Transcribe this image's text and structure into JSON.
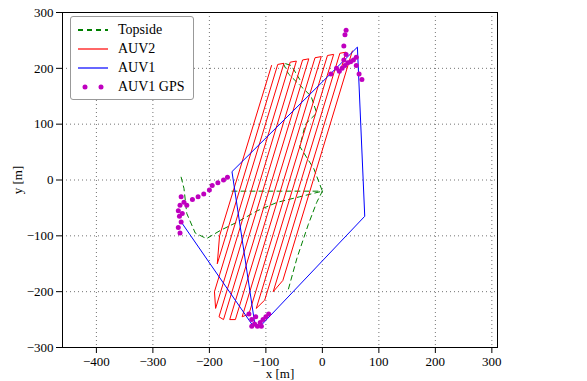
{
  "chart_data": {
    "type": "line",
    "x_label": "x [m]",
    "y_label": "y [m]",
    "xlim": [
      -460,
      310
    ],
    "ylim": [
      -300,
      300
    ],
    "xticks": [
      -400,
      -300,
      -200,
      -100,
      0,
      100,
      200,
      300
    ],
    "yticks": [
      -300,
      -200,
      -100,
      0,
      100,
      200,
      300
    ],
    "grid": true,
    "legend": "upper left",
    "series": [
      {
        "name": "Topside",
        "color": "#008000",
        "type": "line",
        "line_style": "dashed",
        "x": [
          -250,
          -245,
          -240,
          -225,
          -205,
          -180,
          -150,
          -115,
          -80,
          -40,
          0,
          -15,
          -40,
          -30,
          -10,
          -20,
          -40,
          -60,
          -70,
          -55,
          -40,
          null,
          -160,
          0,
          null,
          -60,
          -45,
          -25,
          -10,
          0
        ],
        "y": [
          5,
          -15,
          -60,
          -95,
          -105,
          -90,
          -75,
          -55,
          -40,
          -30,
          -20,
          20,
          60,
          100,
          120,
          150,
          170,
          190,
          210,
          205,
          180,
          null,
          -20,
          -20,
          null,
          -195,
          -140,
          -80,
          -40,
          -20
        ]
      },
      {
        "name": "AUV2",
        "color": "#ff0000",
        "type": "line",
        "line_style": "solid",
        "x": [
          -90,
          -182,
          -186,
          -79,
          -68,
          -191,
          -189,
          -57,
          -46,
          -183,
          -175,
          -35,
          -24,
          -164,
          -154,
          -13,
          -2,
          -142,
          -130,
          9,
          20,
          -117,
          -102,
          31,
          42,
          -87,
          -70,
          53
        ],
        "y": [
          205,
          -100,
          -150,
          207,
          209,
          -200,
          -230,
          211,
          213,
          -245,
          -250,
          215,
          217,
          -250,
          -250,
          219,
          221,
          -245,
          -240,
          223,
          225,
          -230,
          -215,
          227,
          229,
          -200,
          -180,
          231
        ]
      },
      {
        "name": "AUV1",
        "color": "#0000ff",
        "type": "line",
        "line_style": "solid",
        "x": [
          -250,
          -125,
          -110,
          75,
          62,
          -160,
          -120
        ],
        "y": [
          -75,
          -258,
          -262,
          -65,
          238,
          15,
          -255
        ]
      },
      {
        "name": "AUV1 GPS",
        "color": "#bf00bf",
        "type": "scatter",
        "marker": "circle",
        "x": [
          -252,
          -255,
          -253,
          -250,
          -255,
          -252,
          -248,
          -240,
          -230,
          -220,
          -210,
          -200,
          -195,
          -185,
          -175,
          -168,
          -250,
          -245,
          35,
          40,
          45,
          50,
          55,
          60,
          30,
          38,
          42,
          38,
          40,
          42,
          60,
          65,
          70,
          25,
          15,
          -130,
          -125,
          -120,
          -115,
          -110,
          -105,
          -100,
          -95,
          -118,
          -108,
          -125
        ],
        "y": [
          -45,
          -55,
          -65,
          -75,
          -85,
          -95,
          -60,
          -45,
          -35,
          -30,
          -25,
          -18,
          -10,
          -5,
          0,
          5,
          -30,
          -40,
          200,
          205,
          210,
          212,
          215,
          220,
          195,
          215,
          225,
          240,
          260,
          268,
          205,
          190,
          180,
          200,
          190,
          -240,
          -250,
          -258,
          -262,
          -255,
          -250,
          -245,
          -240,
          -245,
          -262,
          -262
        ]
      }
    ]
  }
}
